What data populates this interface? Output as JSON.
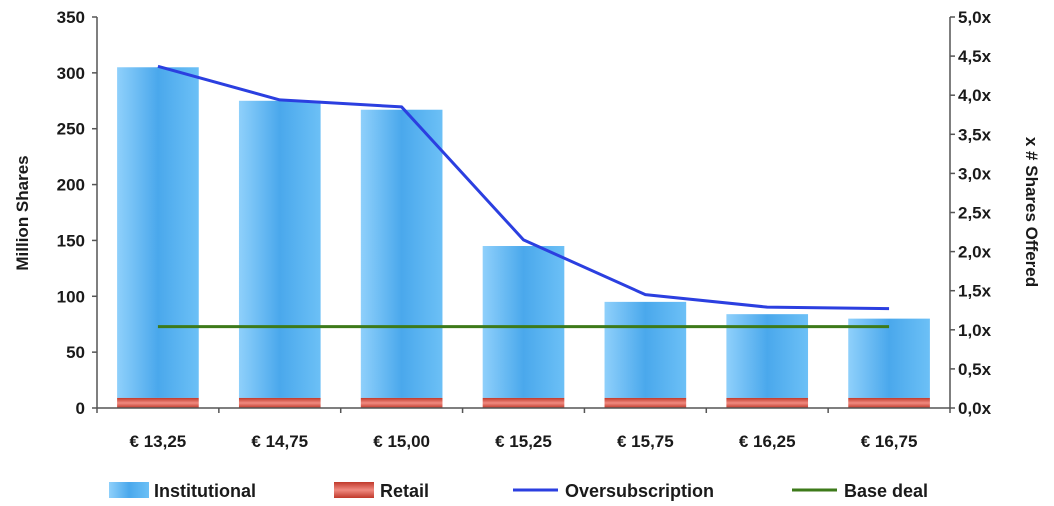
{
  "chart_data": {
    "type": "bar",
    "categories": [
      "€ 13,25",
      "€ 14,75",
      "€ 15,00",
      "€ 15,25",
      "€ 15,75",
      "€ 16,25",
      "€ 16,75"
    ],
    "series": [
      {
        "name": "Institutional",
        "type": "bar",
        "axis": "left",
        "color": "#5fb4ec",
        "values": [
          296,
          266,
          258,
          136,
          86,
          75,
          71
        ]
      },
      {
        "name": "Retail",
        "type": "bar",
        "axis": "left",
        "color": "#d9534f",
        "values": [
          9,
          9,
          9,
          9,
          9,
          9,
          9
        ]
      },
      {
        "name": "Oversubscription",
        "type": "line",
        "axis": "right",
        "color": "#2b3fe0",
        "values": [
          4.37,
          3.94,
          3.85,
          2.15,
          1.45,
          1.29,
          1.27
        ]
      },
      {
        "name": "Base deal",
        "type": "line",
        "axis": "right",
        "color": "#3d7a1a",
        "values": [
          1.04,
          1.04,
          1.04,
          1.04,
          1.04,
          1.04,
          1.04
        ]
      }
    ],
    "ylabel": "Million Shares",
    "y2label": "x # Shares Offered",
    "ylim": [
      0,
      350
    ],
    "y2lim": [
      0,
      5
    ],
    "yticks": [
      "0",
      "50",
      "100",
      "150",
      "200",
      "250",
      "300",
      "350"
    ],
    "y2ticks": [
      "0,0x",
      "0,5x",
      "1,0x",
      "1,5x",
      "2,0x",
      "2,5x",
      "3,0x",
      "3,5x",
      "4,0x",
      "4,5x",
      "5,0x"
    ],
    "grid": false,
    "legend": "bottom"
  }
}
